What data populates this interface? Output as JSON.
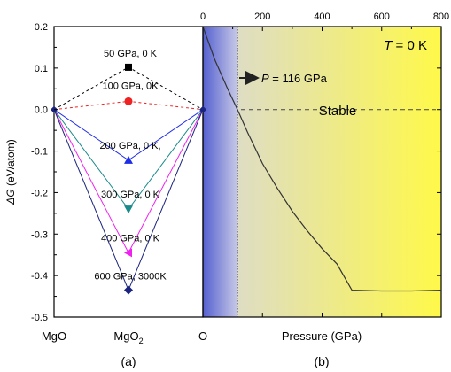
{
  "chart_data": [
    {
      "panel_label": "(a)",
      "type": "line",
      "ylabel_symbol": "ΔG",
      "ylabel_unit": " (eV/atom)",
      "ylim": [
        -0.5,
        0.2
      ],
      "yticks": [
        "0.2",
        "0.1",
        "0.0",
        "-0.1",
        "-0.2",
        "-0.3",
        "-0.4",
        "-0.5"
      ],
      "categories": [
        "MgO",
        "MgO2",
        "O"
      ],
      "series": [
        {
          "name": "50 GPa, 0 K",
          "color": "#000000",
          "marker": "square",
          "dashed": true,
          "values": [
            0,
            0.102,
            0
          ]
        },
        {
          "name": "100 GPa, 0K",
          "color": "#ee2222",
          "marker": "circle",
          "dashed": true,
          "values": [
            0,
            0.02,
            0
          ]
        },
        {
          "name": "200 GPa, 0 K,",
          "color": "#1f2ee6",
          "marker": "triangle-up",
          "dashed": false,
          "values": [
            0,
            -0.122,
            0
          ]
        },
        {
          "name": "300 GPa, 0 K",
          "color": "#1a8a8a",
          "marker": "triangle-down",
          "dashed": false,
          "values": [
            0,
            -0.24,
            0
          ]
        },
        {
          "name": "400 GPa, 0 K",
          "color": "#ee22ee",
          "marker": "triangle-left",
          "dashed": false,
          "values": [
            0,
            -0.345,
            0
          ]
        },
        {
          "name": "600 GPa, 3000K",
          "color": "#1a237e",
          "marker": "diamond",
          "dashed": false,
          "values": [
            0,
            -0.435,
            0
          ]
        }
      ]
    },
    {
      "panel_label": "(b)",
      "type": "line",
      "xlabel": "Pressure (GPa)",
      "xlim": [
        0,
        800
      ],
      "xticks": [
        "0",
        "200",
        "400",
        "600",
        "800"
      ],
      "ylim": [
        -0.5,
        0.2
      ],
      "title_italic": "T",
      "title_rest": " = 0 K",
      "annotation_italic": "P",
      "annotation_rest": " = 116 GPa",
      "transition_pressure": 116,
      "stable_label": "Stable",
      "curve": {
        "x": [
          0,
          40,
          80,
          116,
          150,
          200,
          250,
          300,
          350,
          400,
          450,
          500,
          600,
          700,
          800
        ],
        "y": [
          0.2,
          0.12,
          0.055,
          0.0,
          -0.055,
          -0.13,
          -0.19,
          -0.245,
          -0.292,
          -0.335,
          -0.372,
          -0.435,
          -0.437,
          -0.437,
          -0.435
        ]
      }
    }
  ]
}
